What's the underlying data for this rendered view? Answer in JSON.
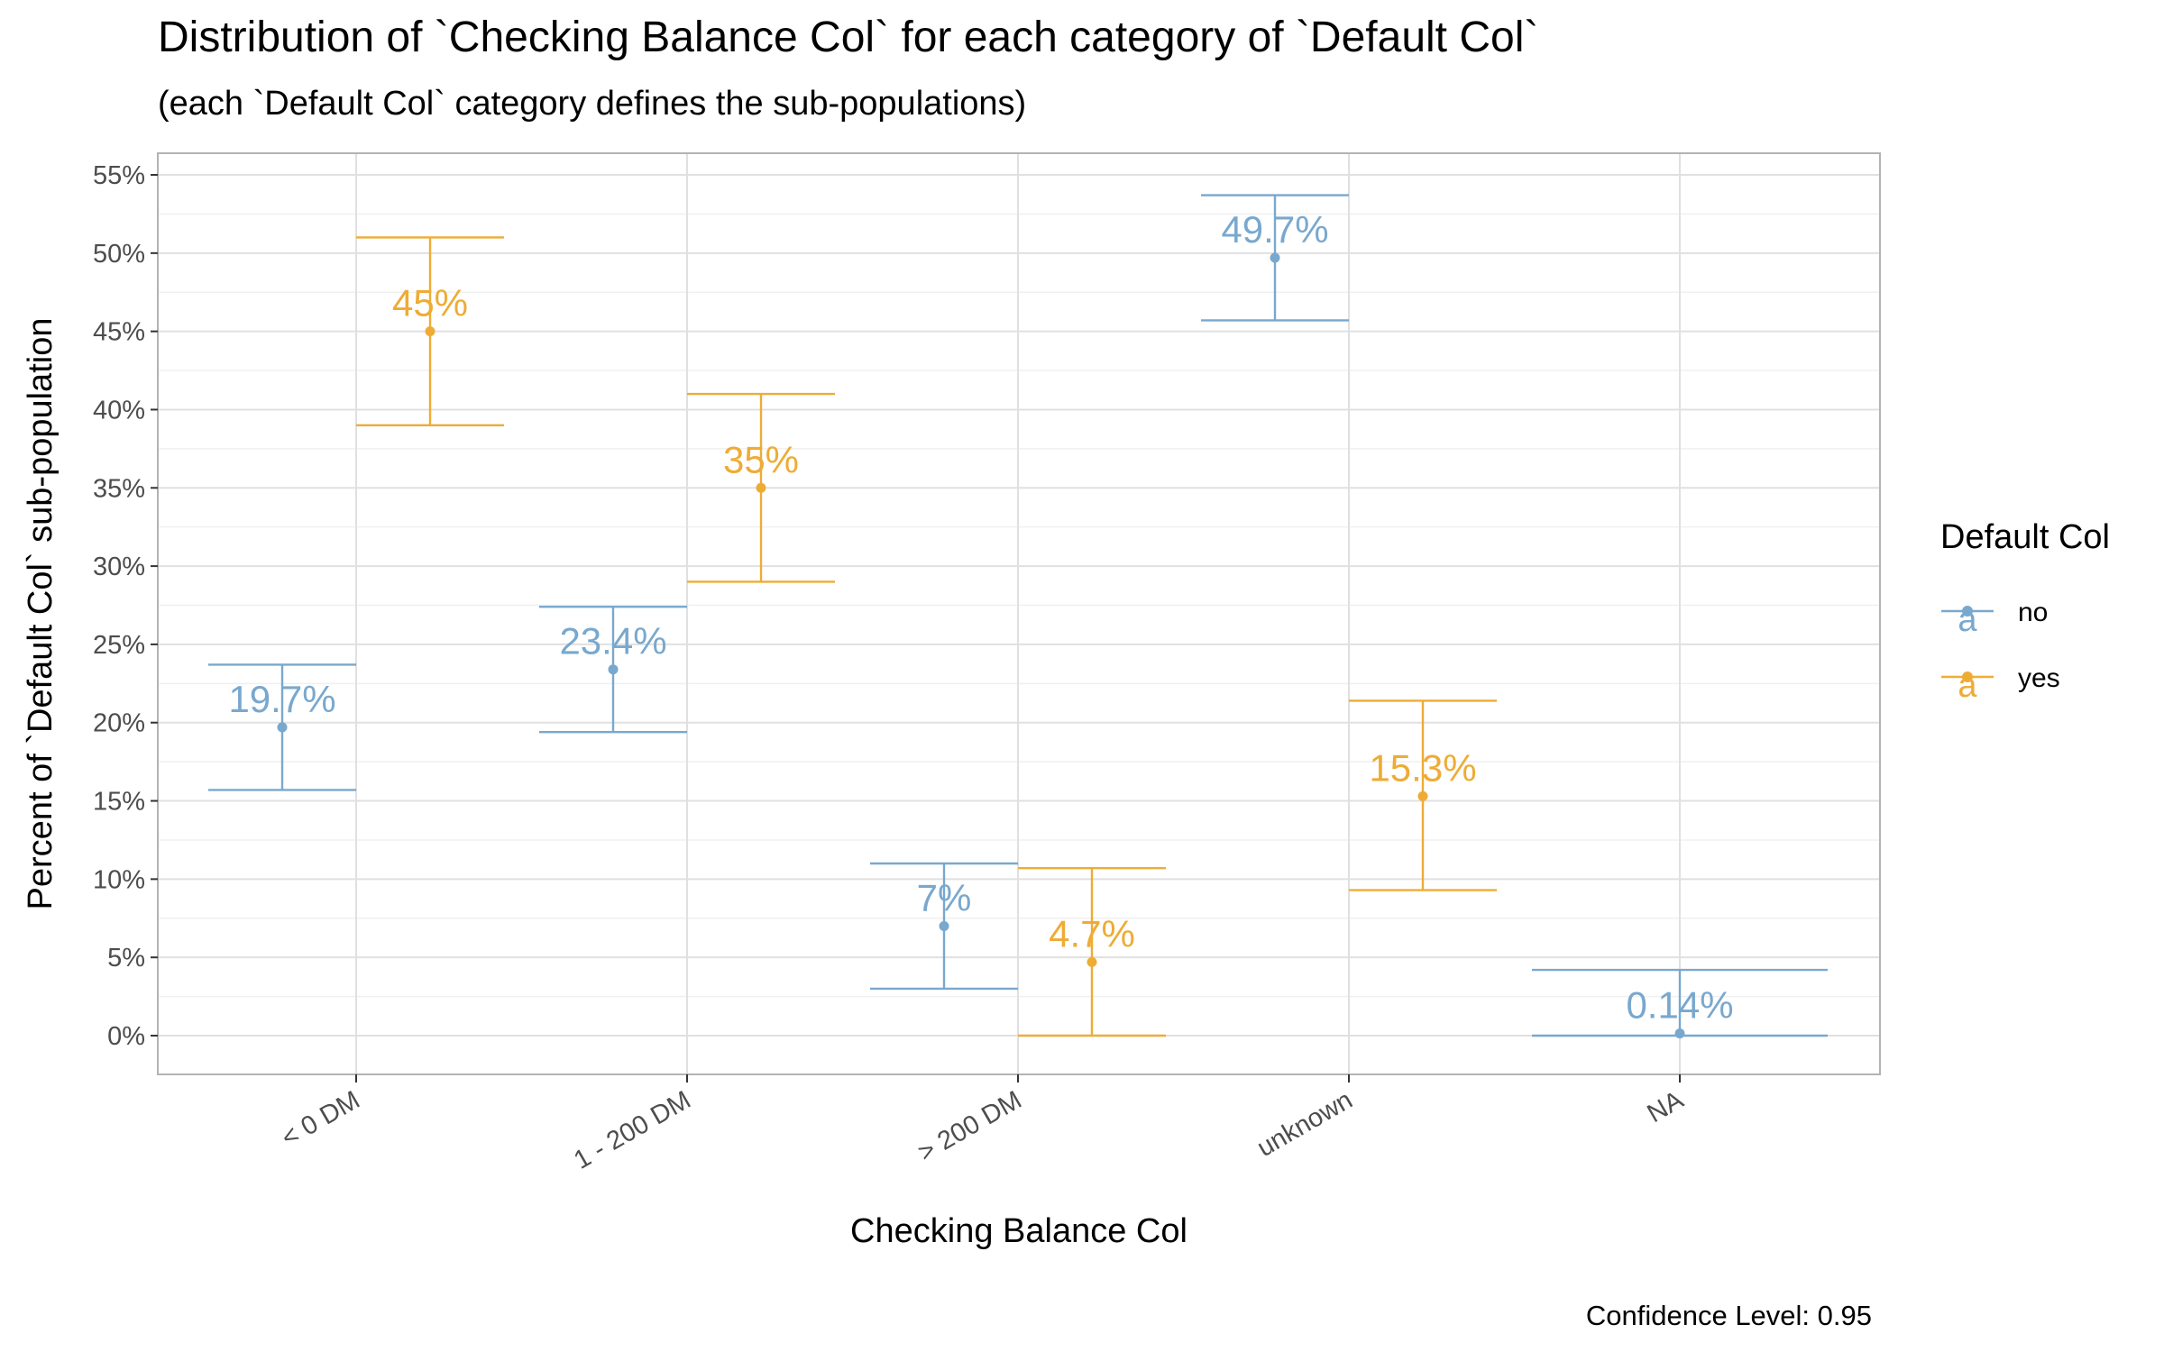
{
  "title": "Distribution of `Checking Balance Col` for each category of `Default Col`",
  "subtitle": "(each `Default Col` category defines the sub-populations)",
  "caption": "Confidence Level: 0.95",
  "colors": {
    "no": "#79a8ce",
    "yes": "#eeac35",
    "grid": "#e0e0e0",
    "panel_border": "#b3b3b3"
  },
  "chart_data": {
    "type": "errorbar",
    "xlabel": "Checking Balance Col",
    "ylabel": "Percent of `Default Col` sub-population",
    "ylim": [
      0,
      55
    ],
    "y_ticks": [
      0,
      5,
      10,
      15,
      20,
      25,
      30,
      35,
      40,
      45,
      50,
      55
    ],
    "y_tick_labels": [
      "0%",
      "5%",
      "10%",
      "15%",
      "20%",
      "25%",
      "30%",
      "35%",
      "40%",
      "45%",
      "50%",
      "55%"
    ],
    "categories": [
      "< 0 DM",
      "1 - 200 DM",
      "> 200 DM",
      "unknown",
      "NA"
    ],
    "legend": {
      "title": "Default Col",
      "position": "right",
      "key_glyph": "a"
    },
    "grid": true,
    "series": [
      {
        "name": "no",
        "points": [
          {
            "x": "< 0 DM",
            "value": 19.7,
            "lower": 15.7,
            "upper": 23.7,
            "label": "19.7%"
          },
          {
            "x": "1 - 200 DM",
            "value": 23.4,
            "lower": 19.4,
            "upper": 27.4,
            "label": "23.4%"
          },
          {
            "x": "> 200 DM",
            "value": 7.0,
            "lower": 3.0,
            "upper": 11.0,
            "label": "7%"
          },
          {
            "x": "unknown",
            "value": 49.7,
            "lower": 45.7,
            "upper": 53.7,
            "label": "49.7%"
          },
          {
            "x": "NA",
            "value": 0.14,
            "lower": 0.0,
            "upper": 4.2,
            "label": "0.14%"
          }
        ]
      },
      {
        "name": "yes",
        "points": [
          {
            "x": "< 0 DM",
            "value": 45.0,
            "lower": 39.0,
            "upper": 51.0,
            "label": "45%"
          },
          {
            "x": "1 - 200 DM",
            "value": 35.0,
            "lower": 29.0,
            "upper": 41.0,
            "label": "35%"
          },
          {
            "x": "> 200 DM",
            "value": 4.7,
            "lower": 0.0,
            "upper": 10.7,
            "label": "4.7%"
          },
          {
            "x": "unknown",
            "value": 15.3,
            "lower": 9.3,
            "upper": 21.4,
            "label": "15.3%"
          }
        ]
      }
    ]
  }
}
